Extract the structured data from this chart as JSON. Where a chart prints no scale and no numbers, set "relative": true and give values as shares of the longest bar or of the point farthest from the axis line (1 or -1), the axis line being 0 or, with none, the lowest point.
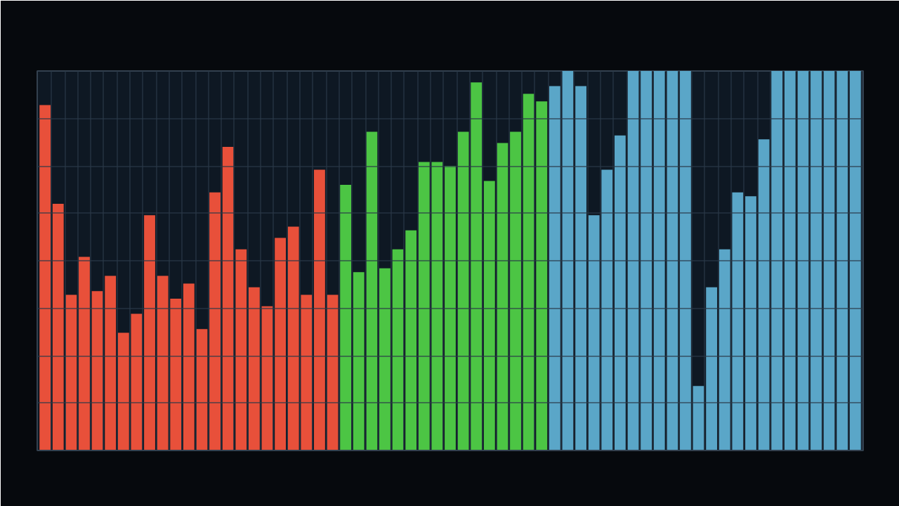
{
  "chart_data": {
    "type": "bar",
    "relative": true,
    "grid": true,
    "categories": [
      null,
      null,
      null,
      null,
      null,
      null,
      null,
      null,
      null,
      null,
      null,
      null,
      null,
      null,
      null,
      null,
      null,
      null,
      null,
      null,
      null,
      null,
      null,
      null,
      null,
      null,
      null,
      null,
      null,
      null,
      null,
      null,
      null,
      null,
      null,
      null,
      null,
      null,
      null,
      null,
      null,
      null,
      null,
      null,
      null,
      null,
      null,
      null,
      null,
      null,
      null,
      null,
      null,
      null,
      null,
      null,
      null,
      null,
      null,
      null,
      null,
      null,
      null
    ],
    "values": [
      0.91,
      0.65,
      0.41,
      0.51,
      0.42,
      0.46,
      0.31,
      0.36,
      0.62,
      0.46,
      0.4,
      0.44,
      0.32,
      0.68,
      0.8,
      0.53,
      0.43,
      0.38,
      0.56,
      0.59,
      0.41,
      0.74,
      0.41,
      0.7,
      0.47,
      0.84,
      0.48,
      0.53,
      0.58,
      0.76,
      0.76,
      0.75,
      0.84,
      0.97,
      0.71,
      0.81,
      0.84,
      0.94,
      0.92,
      0.96,
      1.0,
      0.96,
      0.62,
      0.74,
      0.83,
      1.0,
      1.0,
      1.0,
      1.0,
      1.0,
      0.17,
      0.43,
      0.53,
      0.68,
      0.67,
      0.82,
      1.0,
      1.0,
      1.0,
      1.0,
      1.0,
      1.0,
      1.0
    ],
    "colors": [
      "#e8503a",
      "#e8503a",
      "#e8503a",
      "#e8503a",
      "#e8503a",
      "#e8503a",
      "#e8503a",
      "#e8503a",
      "#e8503a",
      "#e8503a",
      "#e8503a",
      "#e8503a",
      "#e8503a",
      "#e8503a",
      "#e8503a",
      "#e8503a",
      "#e8503a",
      "#e8503a",
      "#e8503a",
      "#e8503a",
      "#e8503a",
      "#e8503a",
      "#e8503a",
      "#4cc544",
      "#4cc544",
      "#4cc544",
      "#4cc544",
      "#4cc544",
      "#4cc544",
      "#4cc544",
      "#4cc544",
      "#4cc544",
      "#4cc544",
      "#4cc544",
      "#4cc544",
      "#4cc544",
      "#4cc544",
      "#4cc544",
      "#4cc544",
      "#5aa6c8",
      "#5aa6c8",
      "#5aa6c8",
      "#5aa6c8",
      "#5aa6c8",
      "#5aa6c8",
      "#5aa6c8",
      "#5aa6c8",
      "#5aa6c8",
      "#5aa6c8",
      "#5aa6c8",
      "#5aa6c8",
      "#5aa6c8",
      "#5aa6c8",
      "#5aa6c8",
      "#5aa6c8",
      "#5aa6c8",
      "#5aa6c8",
      "#5aa6c8",
      "#5aa6c8",
      "#5aa6c8",
      "#5aa6c8",
      "#5aa6c8",
      "#5aa6c8"
    ]
  }
}
